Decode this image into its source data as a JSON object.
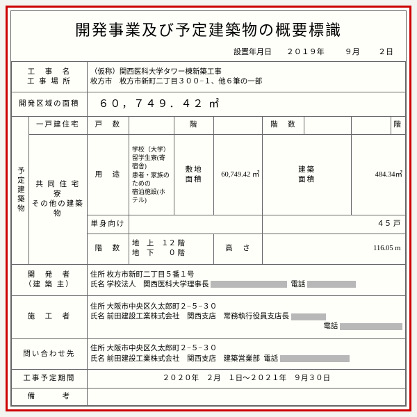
{
  "title": "開発事業及び予定建築物の概要標識",
  "dateLabel": "設置年月日",
  "date": {
    "year": "２０１９",
    "month": "９",
    "day": "２"
  },
  "r1": {
    "l1": "工　事　名",
    "l2": "工 事 場 所",
    "v1": "（仮称）関西医科大学タワー棟新築工事",
    "v2": "枚方市　枚方市新町二丁目３００−１、他６筆の一部"
  },
  "r2": {
    "l": "開発区域の面積",
    "v": "６０，７４９．４２ ㎡"
  },
  "b": {
    "side": "予定建築物",
    "r1l": "一戸建住宅",
    "r2l": "共 同 住 宅\n寮\nその他の建築物",
    "hdr": {
      "units": "戸　数",
      "fl": "階",
      "fl2": "階　数",
      "fl3": "階"
    },
    "use": {
      "l": "用　途",
      "v": "学校（大学）\n留学生寮(寄宿舎)\n患者・家族のための\n宿泊施設(ホテル)"
    },
    "site": {
      "l": "敷地\n面積",
      "v": "60,749.42 ㎡"
    },
    "bld": {
      "l": "建築\n面積",
      "v": "484.34㎡"
    },
    "single": {
      "l": "単身向け",
      "v": "４５ 戸"
    },
    "floors": {
      "l": "階　数",
      "above": "地　上　１２ 階",
      "below": "地　下　　０ 階"
    },
    "h": {
      "l": "高　さ",
      "v": "116.05 m"
    }
  },
  "p": {
    "addr": "住所",
    "name": "氏名",
    "tel": "電話"
  },
  "dev": {
    "l1": "開　発　者",
    "l2": "（建 築 主）",
    "addr": "枚方市新町二丁目５番１号",
    "name": "学校法人　関西医科大学理事長"
  },
  "con": {
    "l": "施　工　者",
    "addr": "大阪市中央区久太郎町２−５−３０",
    "name": "前田建設工業株式会社　関西支店　常務執行役員支店長"
  },
  "inq": {
    "l": "問い合わせ先",
    "addr": "大阪市中央区久太郎町２−５−３０",
    "name": "前田建設工業株式会社　関西支店　建築営業部"
  },
  "per": {
    "l": "工事予定期間",
    "v": "２０２０年　２月　１日〜２０２１年　９月３０日"
  },
  "rem": {
    "l": "備　　　考"
  }
}
